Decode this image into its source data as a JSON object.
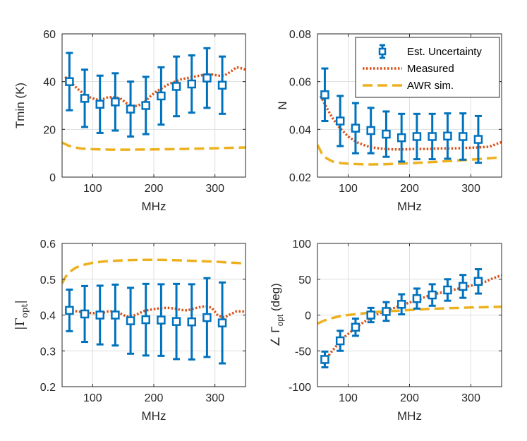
{
  "chart_data": [
    {
      "type": "line",
      "title": "",
      "xlabel": "MHz",
      "ylabel": "Tmin (K)",
      "xlim": [
        50,
        350
      ],
      "ylim": [
        0,
        60
      ],
      "xticks": [
        100,
        200,
        300
      ],
      "yticks": [
        0,
        20,
        40,
        60
      ],
      "xtick_labels": [
        "100",
        "200",
        "300"
      ],
      "ytick_labels": [
        "0",
        "20",
        "40",
        "60"
      ],
      "grid": true,
      "series": [
        {
          "name": "Est. Uncertainty",
          "kind": "errorbar",
          "color": "#0072BD",
          "x": [
            62,
            87,
            112,
            137,
            162,
            187,
            212,
            237,
            262,
            287,
            312
          ],
          "y": [
            40,
            33,
            30.5,
            31.5,
            28.5,
            30,
            34,
            38,
            39,
            41.5,
            38.5
          ],
          "err": [
            12,
            12,
            12,
            12,
            11.5,
            12,
            12,
            12.5,
            12,
            12.5,
            12
          ]
        },
        {
          "name": "Measured",
          "kind": "dotted",
          "color": "#D95319",
          "x": [
            55,
            65,
            75,
            85,
            95,
            105,
            115,
            125,
            135,
            145,
            155,
            165,
            175,
            185,
            195,
            205,
            215,
            225,
            235,
            245,
            255,
            265,
            275,
            285,
            295,
            305,
            315,
            325,
            335,
            345,
            350
          ],
          "y": [
            42,
            39.5,
            37,
            35,
            33.5,
            32.5,
            32.5,
            33.5,
            33.5,
            33,
            31,
            29.5,
            30,
            31.5,
            34,
            36,
            37.5,
            39,
            40,
            41,
            41.5,
            42,
            42.5,
            43,
            43,
            42.5,
            42.5,
            44,
            46,
            45.5,
            45
          ]
        },
        {
          "name": "AWR sim.",
          "kind": "dashed",
          "color": "#EDB120",
          "x": [
            50,
            60,
            70,
            80,
            100,
            130,
            160,
            200,
            250,
            300,
            350
          ],
          "y": [
            14.5,
            13.2,
            12.5,
            12,
            11.7,
            11.5,
            11.5,
            11.6,
            11.8,
            12.1,
            12.4
          ]
        }
      ]
    },
    {
      "type": "line",
      "title": "",
      "xlabel": "MHz",
      "ylabel": "N",
      "xlim": [
        50,
        350
      ],
      "ylim": [
        0.02,
        0.08
      ],
      "xticks": [
        100,
        200,
        300
      ],
      "yticks": [
        0.02,
        0.04,
        0.06,
        0.08
      ],
      "xtick_labels": [
        "100",
        "200",
        "300"
      ],
      "ytick_labels": [
        "0.02",
        "0.04",
        "0.06",
        "0.08"
      ],
      "grid": true,
      "legend": {
        "placement": "top-right",
        "entries": [
          "Est. Uncertainty",
          "Measured",
          "AWR sim."
        ]
      },
      "series": [
        {
          "name": "Est. Uncertainty",
          "kind": "errorbar",
          "color": "#0072BD",
          "x": [
            62,
            87,
            112,
            137,
            162,
            187,
            212,
            237,
            262,
            287,
            312
          ],
          "y": [
            0.0545,
            0.0435,
            0.0405,
            0.0395,
            0.038,
            0.0365,
            0.037,
            0.037,
            0.0372,
            0.037,
            0.0358
          ],
          "err": [
            0.011,
            0.0105,
            0.0105,
            0.0095,
            0.0095,
            0.01,
            0.0095,
            0.0095,
            0.0095,
            0.0097,
            0.0098
          ]
        },
        {
          "name": "Measured",
          "kind": "dotted",
          "color": "#D95319",
          "x": [
            55,
            65,
            75,
            85,
            100,
            115,
            130,
            145,
            160,
            175,
            190,
            210,
            230,
            250,
            270,
            290,
            310,
            330,
            350
          ],
          "y": [
            0.054,
            0.049,
            0.0445,
            0.041,
            0.037,
            0.0345,
            0.033,
            0.0322,
            0.0318,
            0.0316,
            0.0316,
            0.0318,
            0.0318,
            0.032,
            0.032,
            0.0322,
            0.0324,
            0.0327,
            0.0347
          ]
        },
        {
          "name": "AWR sim.",
          "kind": "dashed",
          "color": "#EDB120",
          "x": [
            50,
            57,
            65,
            75,
            90,
            110,
            130,
            160,
            200,
            250,
            300,
            350
          ],
          "y": [
            0.0335,
            0.03,
            0.0278,
            0.0265,
            0.0258,
            0.0255,
            0.0253,
            0.0254,
            0.0258,
            0.0265,
            0.0273,
            0.0283
          ]
        }
      ]
    },
    {
      "type": "line",
      "title": "",
      "xlabel": "MHz",
      "ylabel": "|Γopt|",
      "xlim": [
        50,
        350
      ],
      "ylim": [
        0.2,
        0.6
      ],
      "xticks": [
        100,
        200,
        300
      ],
      "yticks": [
        0.2,
        0.3,
        0.4,
        0.5,
        0.6
      ],
      "xtick_labels": [
        "100",
        "200",
        "300"
      ],
      "ytick_labels": [
        "0.2",
        "0.3",
        "0.4",
        "0.5",
        "0.6"
      ],
      "grid": true,
      "series": [
        {
          "name": "Est. Uncertainty",
          "kind": "errorbar",
          "color": "#0072BD",
          "x": [
            62,
            87,
            112,
            137,
            162,
            187,
            212,
            237,
            262,
            287,
            312
          ],
          "y": [
            0.413,
            0.403,
            0.4,
            0.4,
            0.384,
            0.387,
            0.386,
            0.382,
            0.381,
            0.393,
            0.378
          ],
          "err": [
            0.058,
            0.078,
            0.082,
            0.085,
            0.092,
            0.1,
            0.1,
            0.105,
            0.105,
            0.11,
            0.113
          ]
        },
        {
          "name": "Measured",
          "kind": "dotted",
          "color": "#D95319",
          "x": [
            55,
            65,
            75,
            85,
            95,
            105,
            115,
            125,
            135,
            145,
            155,
            165,
            175,
            185,
            195,
            205,
            215,
            225,
            235,
            245,
            255,
            265,
            275,
            285,
            295,
            305,
            315,
            325,
            335,
            345,
            350
          ],
          "y": [
            0.418,
            0.413,
            0.41,
            0.408,
            0.406,
            0.405,
            0.405,
            0.41,
            0.411,
            0.405,
            0.396,
            0.397,
            0.404,
            0.412,
            0.415,
            0.418,
            0.42,
            0.42,
            0.418,
            0.414,
            0.413,
            0.418,
            0.422,
            0.425,
            0.42,
            0.398,
            0.393,
            0.402,
            0.41,
            0.41,
            0.408
          ]
        },
        {
          "name": "AWR sim.",
          "kind": "dashed",
          "color": "#EDB120",
          "x": [
            50,
            55,
            62,
            72,
            85,
            100,
            120,
            150,
            180,
            210,
            240,
            270,
            300,
            330,
            350
          ],
          "y": [
            0.488,
            0.505,
            0.52,
            0.532,
            0.54,
            0.546,
            0.55,
            0.553,
            0.554,
            0.554,
            0.553,
            0.551,
            0.549,
            0.546,
            0.544
          ]
        }
      ]
    },
    {
      "type": "line",
      "title": "",
      "xlabel": "MHz",
      "ylabel": "∠ Γopt (deg)",
      "xlim": [
        50,
        350
      ],
      "ylim": [
        -100,
        100
      ],
      "xticks": [
        100,
        200,
        300
      ],
      "yticks": [
        -100,
        -50,
        0,
        50,
        100
      ],
      "xtick_labels": [
        "100",
        "200",
        "300"
      ],
      "ytick_labels": [
        "-100",
        "-50",
        "0",
        "50",
        "100"
      ],
      "grid": true,
      "series": [
        {
          "name": "Est. Uncertainty",
          "kind": "errorbar",
          "color": "#0072BD",
          "x": [
            62,
            87,
            112,
            137,
            162,
            187,
            212,
            237,
            262,
            287,
            312
          ],
          "y": [
            -62,
            -36,
            -17,
            0,
            5,
            15,
            23,
            28,
            35,
            40,
            47
          ],
          "err": [
            11,
            14,
            12,
            10,
            13,
            14,
            14,
            15,
            15,
            16,
            17
          ]
        },
        {
          "name": "Measured",
          "kind": "dotted",
          "color": "#D95319",
          "x": [
            58,
            65,
            75,
            85,
            95,
            105,
            115,
            125,
            135,
            145,
            155,
            165,
            175,
            185,
            195,
            205,
            215,
            225,
            235,
            245,
            255,
            265,
            275,
            285,
            295,
            305,
            315,
            325,
            335,
            345,
            350
          ],
          "y": [
            -68,
            -60,
            -49,
            -39,
            -30,
            -23,
            -16,
            -10,
            -5,
            0,
            4,
            7,
            10,
            13,
            16,
            19,
            22,
            25,
            28,
            30,
            32,
            34,
            36,
            38,
            40,
            42,
            44,
            47,
            51,
            54,
            55
          ]
        },
        {
          "name": "AWR sim.",
          "kind": "dashed",
          "color": "#EDB120",
          "x": [
            50,
            60,
            70,
            80,
            90,
            100,
            115,
            130,
            150,
            170,
            200,
            230,
            260,
            300,
            350
          ],
          "y": [
            -12,
            -8,
            -5,
            -3,
            -1,
            0,
            1.5,
            3,
            4.5,
            5.5,
            7,
            8.5,
            9.5,
            10.5,
            11.5
          ]
        }
      ]
    }
  ]
}
